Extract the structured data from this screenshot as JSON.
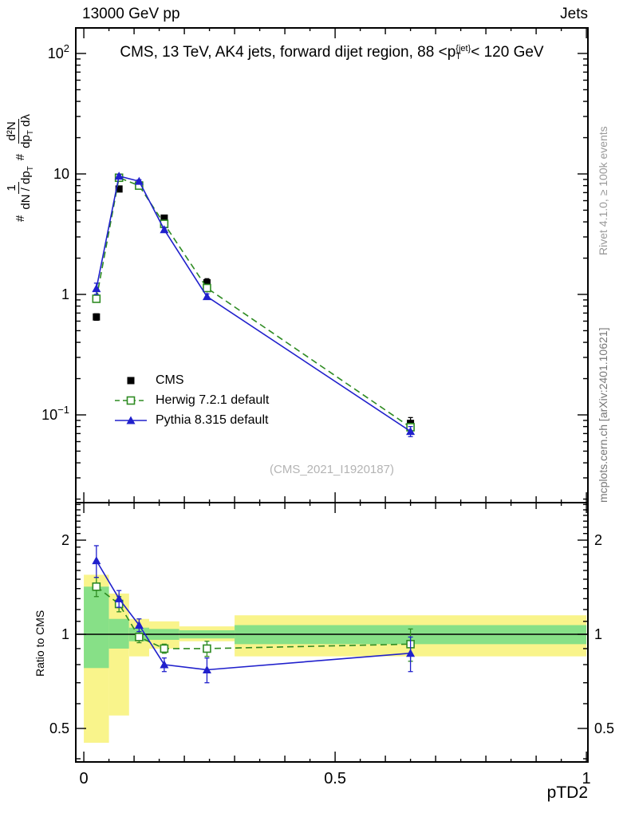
{
  "header": {
    "left": "13000 GeV pp",
    "right": "Jets"
  },
  "sidebar_right": {
    "top": "Rivet 4.1.0, ≥ 100k events",
    "bottom": "mcplots.cern.ch [arXiv:2401.10621]"
  },
  "title": {
    "pre": "CMS, 13 TeV, AK4 jets, forward dijet region, 88 <p",
    "sup": "{jet}",
    "sub": "T",
    "post": "< 120 GeV"
  },
  "watermark": "(CMS_2021_I1920187)",
  "ylabel_main": {
    "h1": "#",
    "f1num": "1",
    "f1den_a": "dN / dp",
    "f1den_sub": "T",
    "h2": "#",
    "f2num": "d²N",
    "f2den_a": "dp",
    "f2den_sub": "T",
    "f2den_b": " dλ"
  },
  "ylabel_ratio": "Ratio to CMS",
  "xlabel": "pTD2",
  "legend": [
    {
      "label": "CMS",
      "marker": "filled-square",
      "color": "#000000",
      "line": "none"
    },
    {
      "label": "Herwig 7.2.1 default",
      "marker": "open-square",
      "color": "#2e8b22",
      "line": "dashed"
    },
    {
      "label": "Pythia 8.315 default",
      "marker": "filled-triangle",
      "color": "#2020cc",
      "line": "solid"
    }
  ],
  "chart_data": {
    "type": "line",
    "title": "CMS, 13 TeV, AK4 jets, forward dijet region, 88 < pT{jet} < 120 GeV",
    "xlabel": "pTD2",
    "xlim": [
      -0.016,
      1.003
    ],
    "x": [
      0.025,
      0.07,
      0.11,
      0.16,
      0.245,
      0.65
    ],
    "xticks": {
      "major": [
        0,
        0.5,
        1
      ],
      "labels": [
        "0",
        "0.5",
        "1"
      ]
    },
    "main": {
      "yscale": "log",
      "ylim": [
        0.019,
        160
      ],
      "ylabel": "# 1/(dN/dpT) # d2N/(dpT dlambda)",
      "yticks_major": [
        0.1,
        1,
        10,
        100
      ],
      "series": [
        {
          "name": "CMS",
          "color": "#000000",
          "marker": "filled-square",
          "line": "none",
          "values": [
            0.65,
            7.5,
            8.1,
            4.3,
            1.25,
            0.085
          ],
          "yerr": [
            0.04,
            0.35,
            0.35,
            0.2,
            0.1,
            0.01
          ]
        },
        {
          "name": "Herwig 7.2.1 default",
          "color": "#2e8b22",
          "marker": "open-square",
          "line": "dashed",
          "values": [
            0.92,
            9.3,
            8.0,
            3.85,
            1.13,
            0.079
          ],
          "yerr": [
            0.05,
            0.3,
            0.25,
            0.12,
            0.05,
            0.006
          ]
        },
        {
          "name": "Pythia 8.315 default",
          "color": "#2020cc",
          "marker": "filled-triangle",
          "line": "solid",
          "values": [
            1.12,
            9.6,
            8.7,
            3.45,
            0.96,
            0.073
          ],
          "yerr": [
            0.12,
            0.3,
            0.25,
            0.12,
            0.05,
            0.007
          ]
        }
      ]
    },
    "ratio": {
      "yscale": "log",
      "ylim": [
        0.39,
        2.6
      ],
      "ylabel": "Ratio to CMS",
      "yticks_major": [
        0.5,
        1,
        2
      ],
      "ytick_labels": [
        "0.5",
        "1",
        "2"
      ],
      "bins": [
        0.0,
        0.05,
        0.09,
        0.13,
        0.19,
        0.3,
        1.0
      ],
      "band_colors": {
        "yellow": "#f9f48b",
        "green": "#87e087"
      },
      "bands": [
        {
          "yellow": [
            0.45,
            1.55
          ],
          "green": [
            0.78,
            1.42
          ]
        },
        {
          "yellow": [
            0.55,
            1.35
          ],
          "green": [
            0.9,
            1.12
          ]
        },
        {
          "yellow": [
            0.85,
            1.12
          ],
          "green": [
            0.95,
            1.05
          ]
        },
        {
          "yellow": [
            0.9,
            1.1
          ],
          "green": [
            0.96,
            1.04
          ]
        },
        {
          "yellow": [
            0.95,
            1.06
          ],
          "green": [
            0.97,
            1.03
          ]
        },
        {
          "yellow": [
            0.85,
            1.15
          ],
          "green": [
            0.93,
            1.07
          ]
        }
      ],
      "series": [
        {
          "name": "Herwig 7.2.1 default",
          "color": "#2e8b22",
          "marker": "open-square",
          "line": "dashed",
          "values": [
            1.42,
            1.25,
            0.98,
            0.9,
            0.9,
            0.93
          ],
          "yerr": [
            0.1,
            0.07,
            0.04,
            0.03,
            0.05,
            0.11
          ]
        },
        {
          "name": "Pythia 8.315 default",
          "color": "#2020cc",
          "marker": "filled-triangle",
          "line": "solid",
          "values": [
            1.72,
            1.3,
            1.07,
            0.8,
            0.77,
            0.87
          ],
          "yerr": [
            0.2,
            0.08,
            0.05,
            0.04,
            0.07,
            0.11
          ]
        }
      ]
    }
  }
}
